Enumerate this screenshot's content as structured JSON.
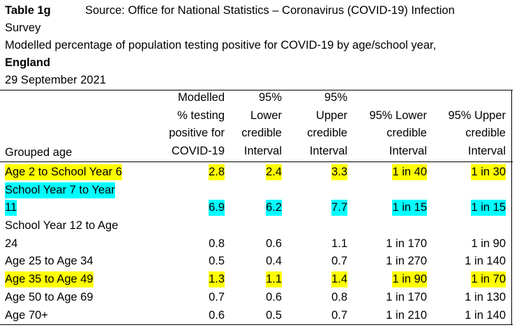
{
  "header": {
    "table_id": "Table 1g",
    "source": "Source: Office for National Statistics – Coronavirus (COVID-19) Infection",
    "source_cont": "Survey",
    "description": "Modelled percentage of population testing positive for COVID-19 by age/school year,",
    "region": "England",
    "date": "29 September 2021"
  },
  "table": {
    "columns": [
      {
        "lines": [
          "Modelled",
          "% testing",
          "positive for",
          "COVID-19"
        ]
      },
      {
        "lines": [
          "95%",
          "Lower",
          "credible",
          "Interval"
        ]
      },
      {
        "lines": [
          "95%",
          "Upper",
          "credible",
          "Interval"
        ]
      },
      {
        "lines": [
          "95% Lower",
          "credible",
          "Interval"
        ]
      },
      {
        "lines": [
          "95% Upper",
          "credible",
          "Interval"
        ]
      }
    ],
    "group_header": "Grouped age",
    "rows": [
      {
        "label": [
          "Age 2 to School Year 6"
        ],
        "values": [
          "2.8",
          "2.4",
          "3.3",
          "1 in 40",
          "1 in 30"
        ],
        "highlight": "#ffff00"
      },
      {
        "label": [
          "School Year 7 to Year",
          "11"
        ],
        "values": [
          "6.9",
          "6.2",
          "7.7",
          "1 in 15",
          "1 in 15"
        ],
        "highlight": "#00ffff"
      },
      {
        "label": [
          "School Year 12 to Age",
          "24"
        ],
        "values": [
          "0.8",
          "0.6",
          "1.1",
          "1 in 170",
          "1 in 90"
        ],
        "highlight": null
      },
      {
        "label": [
          "Age 25 to Age 34"
        ],
        "values": [
          "0.5",
          "0.4",
          "0.7",
          "1 in 270",
          "1 in 140"
        ],
        "highlight": null
      },
      {
        "label": [
          "Age 35 to Age 49"
        ],
        "values": [
          "1.3",
          "1.1",
          "1.4",
          "1 in 90",
          "1 in 70"
        ],
        "highlight": "#ffff00"
      },
      {
        "label": [
          "Age 50 to Age 69"
        ],
        "values": [
          "0.7",
          "0.6",
          "0.8",
          "1 in 170",
          "1 in 130"
        ],
        "highlight": null
      },
      {
        "label": [
          "Age 70+"
        ],
        "values": [
          "0.6",
          "0.5",
          "0.7",
          "1 in 210",
          "1 in 140"
        ],
        "highlight": null
      }
    ]
  }
}
